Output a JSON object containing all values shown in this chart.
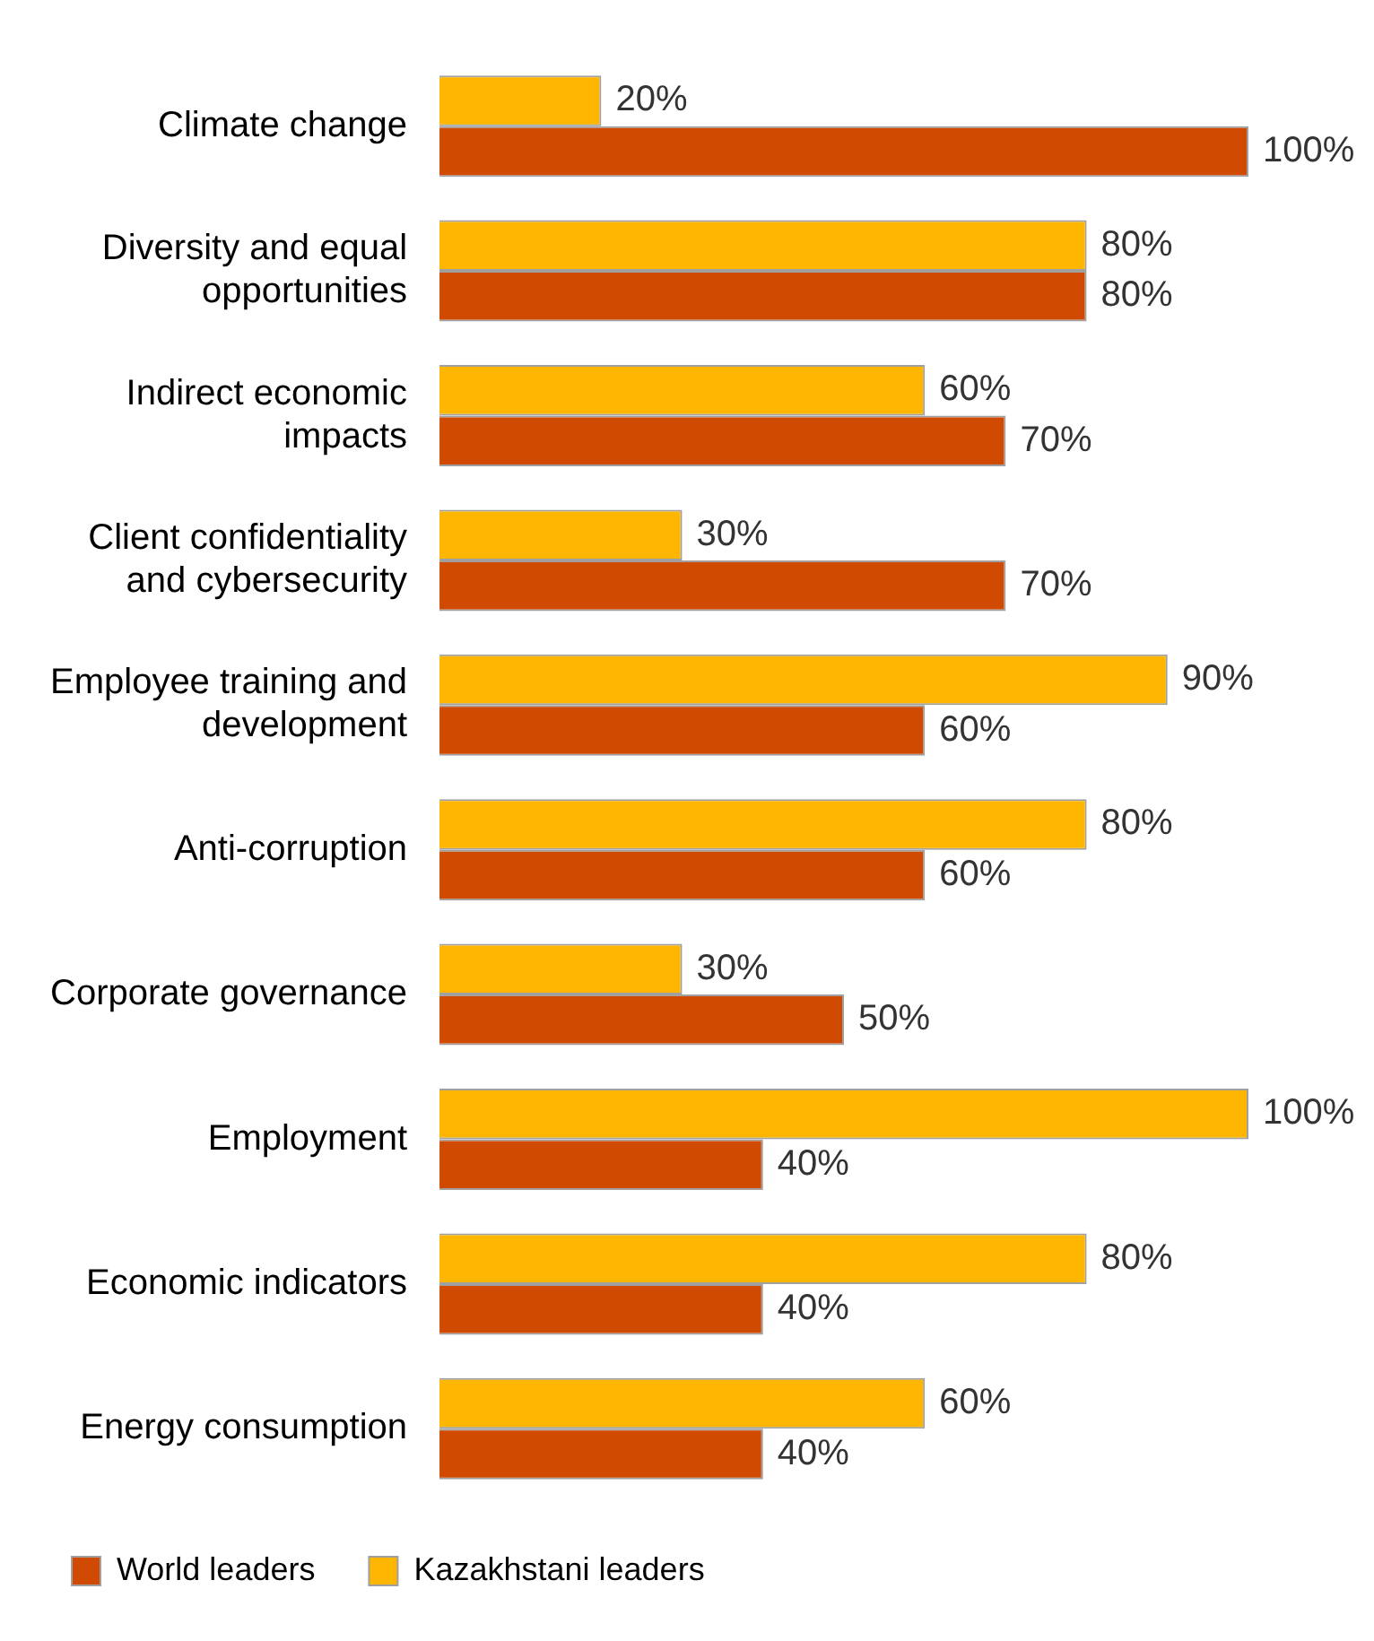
{
  "chart_data": {
    "type": "bar",
    "orientation": "horizontal",
    "categories": [
      "Climate change",
      "Diversity and equal opportunities",
      "Indirect economic impacts",
      "Client confidentiality and cybersecurity",
      "Employee training and development",
      "Anti-corruption",
      "Corporate governance",
      "Employment",
      "Economic indicators",
      "Energy consumption"
    ],
    "series": [
      {
        "name": "Kazakhstani leaders",
        "color": "#ffb600",
        "values": [
          20,
          80,
          60,
          30,
          90,
          80,
          30,
          100,
          80,
          60
        ],
        "value_labels": [
          "20%",
          "80%",
          "60%",
          "30%",
          "90%",
          "80%",
          "30%",
          "100%",
          "80%",
          "60%"
        ]
      },
      {
        "name": "World leaders",
        "color": "#d04a02",
        "values": [
          100,
          80,
          70,
          70,
          60,
          60,
          50,
          40,
          40,
          40
        ],
        "value_labels": [
          "100%",
          "80%",
          "70%",
          "70%",
          "60%",
          "60%",
          "50%",
          "40%",
          "40%",
          "40%"
        ]
      }
    ],
    "xlim": [
      0,
      100
    ],
    "tick_labels": "y",
    "legend": "bottom"
  }
}
